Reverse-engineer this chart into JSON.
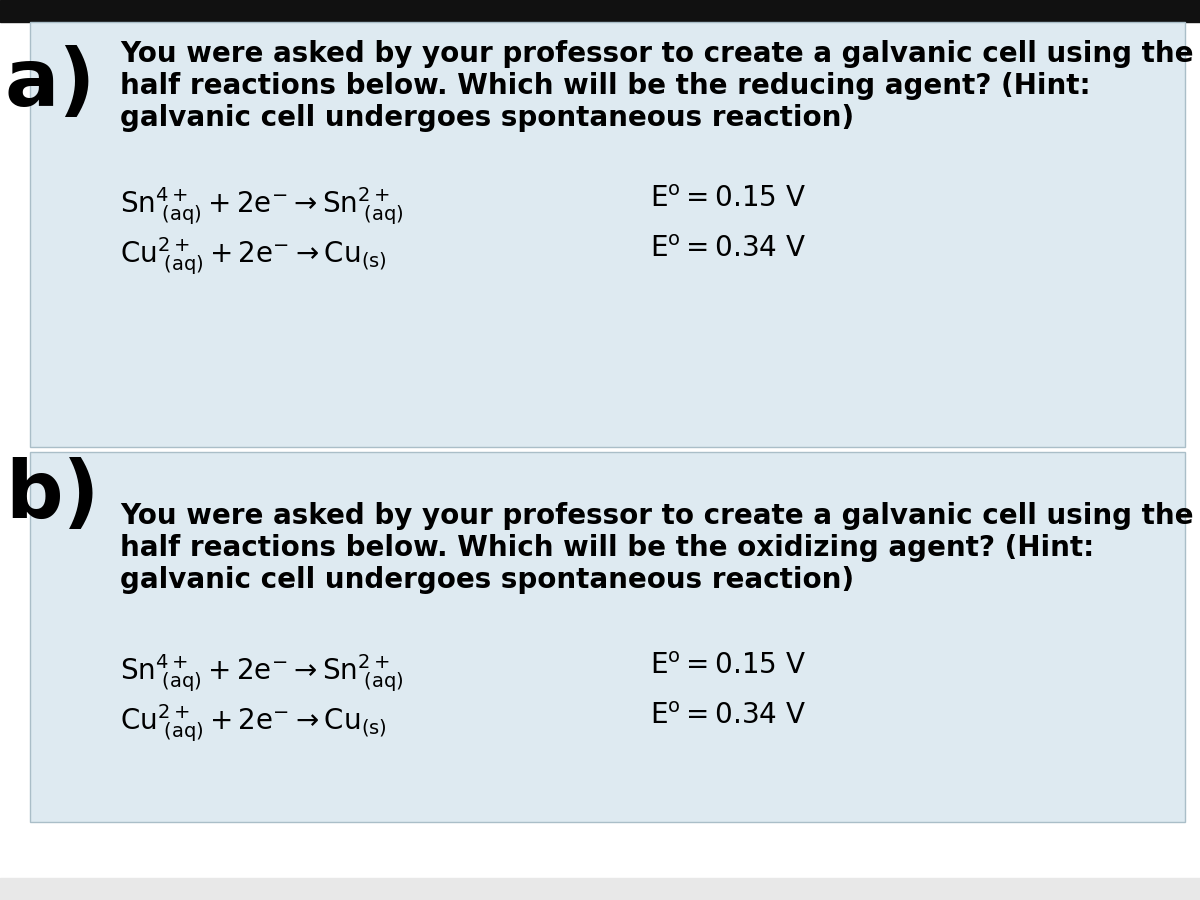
{
  "bg_top_color": "#111111",
  "bg_main_color": "#ffffff",
  "bg_bottom_color": "#f0f0f0",
  "panel_color": "#deeaf1",
  "panel_border_color": "#aabec8",
  "text_color": "#000000",
  "label_a": "a)",
  "label_b": "b)",
  "label_fontsize": 58,
  "body_fontsize": 20,
  "equation_fontsize": 20,
  "section_a_question_line1": "You were asked by your professor to create a galvanic cell using the",
  "section_a_question_line2": "half reactions below. Which will be the reducing agent? (Hint:",
  "section_a_question_line3": "galvanic cell undergoes spontaneous reaction)",
  "section_b_question_line1": "You were asked by your professor to create a galvanic cell using the",
  "section_b_question_line2": "half reactions below. Which will be the oxidizing agent? (Hint:",
  "section_b_question_line3": "galvanic cell undergoes spontaneous reaction)"
}
